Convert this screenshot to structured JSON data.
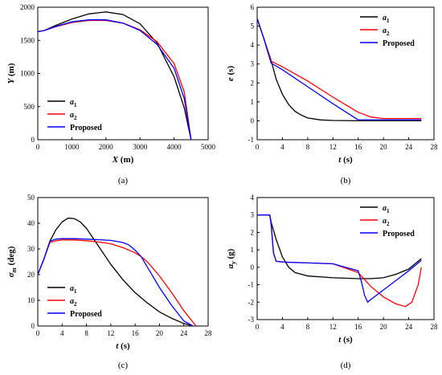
{
  "colors": {
    "a1": "#000000",
    "a2": "#ff0000",
    "proposed": "#0000ff"
  },
  "chart_data": [
    {
      "type": "line",
      "panel_label": "(a)",
      "xlabel": "X (m)",
      "ylabel": "Y (m)",
      "xlim": [
        0,
        5000
      ],
      "ylim": [
        0,
        2000
      ],
      "xticks": [
        0,
        1000,
        2000,
        3000,
        4000,
        5000
      ],
      "yticks": [
        0,
        500,
        1000,
        1500,
        2000
      ],
      "legend": {
        "placement": "bottom-left",
        "entries": [
          "a1",
          "a2",
          "Proposed"
        ]
      },
      "series": [
        {
          "name": "a1",
          "x": [
            0,
            200,
            500,
            1000,
            1500,
            2000,
            2500,
            3000,
            3500,
            4000,
            4300,
            4500
          ],
          "y": [
            1630,
            1650,
            1720,
            1820,
            1900,
            1930,
            1890,
            1750,
            1460,
            950,
            480,
            0
          ]
        },
        {
          "name": "a2",
          "x": [
            0,
            200,
            500,
            1000,
            1500,
            2000,
            2500,
            3000,
            3500,
            4000,
            4300,
            4500
          ],
          "y": [
            1630,
            1650,
            1700,
            1770,
            1800,
            1800,
            1760,
            1660,
            1480,
            1150,
            720,
            0
          ]
        },
        {
          "name": "Proposed",
          "x": [
            0,
            200,
            500,
            1000,
            1500,
            2000,
            2500,
            3000,
            3500,
            4000,
            4300,
            4500
          ],
          "y": [
            1630,
            1650,
            1705,
            1780,
            1810,
            1810,
            1760,
            1650,
            1440,
            1080,
            620,
            0
          ]
        }
      ]
    },
    {
      "type": "line",
      "panel_label": "(b)",
      "xlabel": "t (s)",
      "ylabel": "e (s)",
      "xlim": [
        0,
        28
      ],
      "ylim": [
        -1,
        6
      ],
      "xticks": [
        0,
        4,
        8,
        12,
        16,
        20,
        24,
        28
      ],
      "yticks": [
        -1,
        0,
        1,
        2,
        3,
        4,
        5,
        6
      ],
      "legend": {
        "placement": "top-right",
        "entries": [
          "a1",
          "a2",
          "Proposed"
        ]
      },
      "series": [
        {
          "name": "a1",
          "x": [
            0,
            1,
            2.2,
            3,
            4,
            5,
            6,
            7,
            8,
            10,
            12,
            16,
            20,
            26
          ],
          "y": [
            5.4,
            4.4,
            3.2,
            2.2,
            1.4,
            0.85,
            0.5,
            0.3,
            0.15,
            0.05,
            0.02,
            0,
            0,
            0
          ]
        },
        {
          "name": "a2",
          "x": [
            0,
            1,
            2.2,
            4,
            8,
            12,
            16,
            18,
            20,
            26
          ],
          "y": [
            5.4,
            4.4,
            3.15,
            2.85,
            2.1,
            1.25,
            0.45,
            0.2,
            0.12,
            0.12
          ]
        },
        {
          "name": "Proposed",
          "x": [
            0,
            1,
            2.2,
            4,
            8,
            12,
            16,
            17,
            20,
            26
          ],
          "y": [
            5.4,
            4.4,
            3.05,
            2.7,
            1.8,
            0.9,
            0.05,
            0.05,
            0.05,
            0.05
          ]
        }
      ]
    },
    {
      "type": "line",
      "panel_label": "(c)",
      "xlabel": "t (s)",
      "ylabel": "σm (deg)",
      "xlim": [
        0,
        28
      ],
      "ylim": [
        0,
        50
      ],
      "xticks": [
        0,
        4,
        8,
        12,
        16,
        20,
        24,
        28
      ],
      "yticks": [
        0,
        10,
        20,
        30,
        40,
        50
      ],
      "legend": {
        "placement": "bottom-left",
        "entries": [
          "a1",
          "a2",
          "Proposed"
        ]
      },
      "series": [
        {
          "name": "a1",
          "x": [
            0,
            1,
            2,
            3,
            4,
            5,
            6,
            7,
            8,
            10,
            12,
            14,
            16,
            18,
            20,
            22,
            24,
            25.5
          ],
          "y": [
            20,
            26,
            33,
            37.5,
            40.5,
            42,
            41.8,
            40.5,
            38,
            31,
            24,
            18,
            13,
            9,
            5.5,
            3,
            1,
            0
          ]
        },
        {
          "name": "a2",
          "x": [
            0,
            1,
            2,
            3,
            4,
            6,
            8,
            10,
            12,
            14,
            16,
            17,
            18,
            20,
            22,
            24,
            26
          ],
          "y": [
            20,
            26,
            32.5,
            33.2,
            33.5,
            33.5,
            33.2,
            32.7,
            32,
            30.5,
            28.5,
            27,
            25,
            19.5,
            13,
            6,
            0
          ]
        },
        {
          "name": "Proposed",
          "x": [
            0,
            1,
            2,
            3,
            4,
            6,
            8,
            10,
            12,
            14,
            15,
            16,
            17,
            18,
            20,
            22,
            24,
            25.5
          ],
          "y": [
            20,
            26,
            33,
            33.8,
            34,
            34,
            33.8,
            33.6,
            33.3,
            32.5,
            31.5,
            29.5,
            27,
            23,
            15,
            8,
            2,
            0
          ]
        }
      ]
    },
    {
      "type": "line",
      "panel_label": "(d)",
      "xlabel": "t (s)",
      "ylabel": "ay (g)",
      "xlim": [
        0,
        28
      ],
      "ylim": [
        -3,
        4
      ],
      "xticks": [
        0,
        4,
        8,
        12,
        16,
        20,
        24,
        28
      ],
      "yticks": [
        -3,
        -2,
        -1,
        0,
        1,
        2,
        3,
        4
      ],
      "legend": {
        "placement": "top-right",
        "entries": [
          "a1",
          "a2",
          "Proposed"
        ]
      },
      "series": [
        {
          "name": "a1",
          "x": [
            0,
            2,
            2.2,
            3,
            4,
            5,
            6,
            8,
            12,
            16,
            18,
            20,
            22,
            24,
            26
          ],
          "y": [
            3,
            3,
            2.6,
            1.6,
            0.6,
            0,
            -0.3,
            -0.5,
            -0.6,
            -0.65,
            -0.65,
            -0.6,
            -0.4,
            -0.1,
            0.5
          ]
        },
        {
          "name": "a2",
          "x": [
            0,
            2,
            2.2,
            2.6,
            3,
            4,
            8,
            12,
            16,
            17,
            18,
            20,
            22,
            23.5,
            24.5,
            25.5,
            26
          ],
          "y": [
            3,
            3,
            2.5,
            0.8,
            0.35,
            0.3,
            0.25,
            0.2,
            -0.3,
            -0.7,
            -1.1,
            -1.7,
            -2.1,
            -2.25,
            -2.0,
            -1.0,
            0
          ]
        },
        {
          "name": "Proposed",
          "x": [
            0,
            2,
            2.2,
            2.6,
            3,
            4,
            8,
            12,
            16,
            16.5,
            17,
            17.5,
            18,
            20,
            22,
            24,
            26
          ],
          "y": [
            3,
            3,
            2.5,
            0.8,
            0.35,
            0.3,
            0.25,
            0.2,
            -0.2,
            -0.8,
            -1.6,
            -2.0,
            -1.85,
            -1.3,
            -0.75,
            -0.2,
            0.4
          ]
        }
      ]
    }
  ],
  "legend_labels": {
    "a1": "a",
    "a1_sub": "1",
    "a2": "a",
    "a2_sub": "2",
    "proposed": "Proposed"
  }
}
